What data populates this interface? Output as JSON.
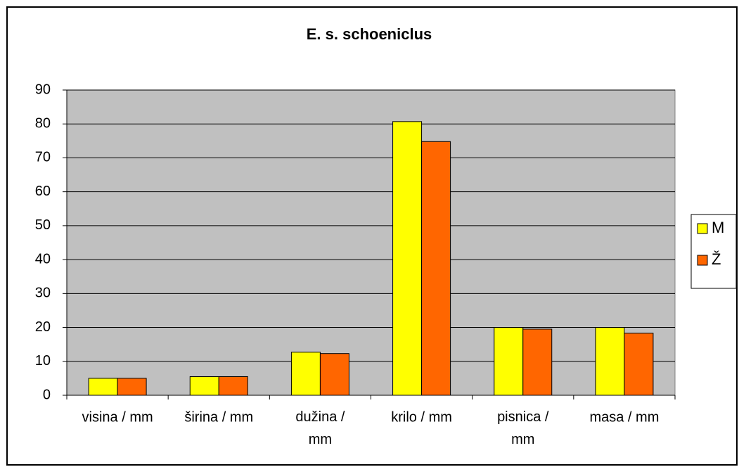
{
  "chart_data": {
    "type": "bar",
    "title": "E. s. schoeniclus",
    "categories": [
      "visina / mm",
      "širina / mm",
      "dužina / mm",
      "krilo / mm",
      "pisnica / mm",
      "masa / mm"
    ],
    "series": [
      {
        "name": "M",
        "color": "#ffff00",
        "values": [
          5,
          5.5,
          12.7,
          80.7,
          20,
          20
        ]
      },
      {
        "name": "Ž",
        "color": "#ff6600",
        "values": [
          5,
          5.5,
          12.3,
          74.8,
          19.5,
          18.3
        ]
      }
    ],
    "ylim": [
      0,
      90
    ],
    "yticks": [
      0,
      10,
      20,
      30,
      40,
      50,
      60,
      70,
      80,
      90
    ],
    "grid": true,
    "legend": "right"
  }
}
